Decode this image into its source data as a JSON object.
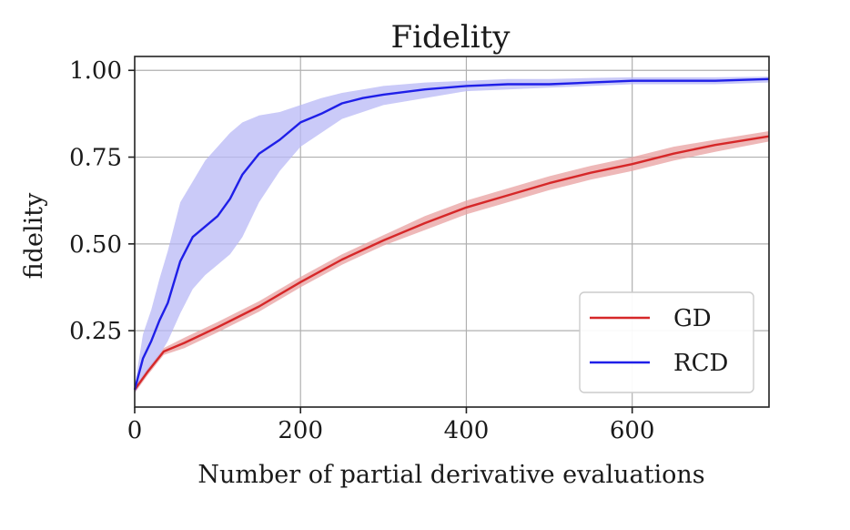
{
  "chart_data": {
    "type": "line",
    "title": "Fidelity",
    "xlabel": "Number of partial derivative evaluations",
    "ylabel": "fidelity",
    "xlim": [
      0,
      765
    ],
    "ylim": [
      0.03,
      1.04
    ],
    "xticks": [
      0,
      200,
      400,
      600
    ],
    "xtick_labels": [
      "0",
      "200",
      "400",
      "600"
    ],
    "yticks": [
      0.25,
      0.5,
      0.75,
      1.0
    ],
    "ytick_labels": [
      "0.25",
      "0.50",
      "0.75",
      "1.00"
    ],
    "grid": true,
    "legend_position": "bottom-right",
    "series": [
      {
        "name": "GD",
        "color": "#d62728",
        "band_color": "#e8a0a0",
        "x": [
          0,
          15,
          35,
          60,
          100,
          150,
          200,
          250,
          300,
          350,
          400,
          450,
          500,
          550,
          600,
          650,
          700,
          765
        ],
        "y": [
          0.08,
          0.13,
          0.19,
          0.215,
          0.26,
          0.32,
          0.39,
          0.455,
          0.51,
          0.56,
          0.605,
          0.64,
          0.675,
          0.705,
          0.73,
          0.76,
          0.785,
          0.81
        ],
        "lower": [
          0.07,
          0.12,
          0.18,
          0.2,
          0.245,
          0.305,
          0.375,
          0.44,
          0.495,
          0.54,
          0.585,
          0.62,
          0.655,
          0.685,
          0.71,
          0.74,
          0.765,
          0.795
        ],
        "upper": [
          0.09,
          0.14,
          0.2,
          0.23,
          0.275,
          0.335,
          0.405,
          0.47,
          0.525,
          0.58,
          0.625,
          0.66,
          0.695,
          0.725,
          0.75,
          0.78,
          0.8,
          0.825
        ]
      },
      {
        "name": "RCD",
        "color": "#1f1fe8",
        "band_color": "#b8b8f5",
        "x": [
          0,
          10,
          20,
          30,
          40,
          55,
          70,
          85,
          100,
          115,
          130,
          150,
          175,
          200,
          225,
          250,
          275,
          300,
          350,
          400,
          450,
          500,
          550,
          600,
          650,
          700,
          765
        ],
        "y": [
          0.08,
          0.17,
          0.22,
          0.28,
          0.33,
          0.45,
          0.52,
          0.55,
          0.58,
          0.63,
          0.7,
          0.76,
          0.8,
          0.85,
          0.875,
          0.905,
          0.92,
          0.93,
          0.945,
          0.955,
          0.96,
          0.96,
          0.965,
          0.97,
          0.97,
          0.97,
          0.975
        ],
        "lower": [
          0.07,
          0.11,
          0.14,
          0.18,
          0.22,
          0.3,
          0.37,
          0.41,
          0.44,
          0.47,
          0.52,
          0.62,
          0.71,
          0.78,
          0.82,
          0.86,
          0.88,
          0.9,
          0.92,
          0.94,
          0.945,
          0.95,
          0.955,
          0.96,
          0.96,
          0.96,
          0.965
        ],
        "upper": [
          0.09,
          0.24,
          0.31,
          0.4,
          0.48,
          0.62,
          0.68,
          0.74,
          0.78,
          0.82,
          0.85,
          0.87,
          0.88,
          0.9,
          0.92,
          0.935,
          0.945,
          0.955,
          0.965,
          0.97,
          0.975,
          0.975,
          0.978,
          0.98,
          0.98,
          0.98,
          0.982
        ]
      }
    ]
  }
}
